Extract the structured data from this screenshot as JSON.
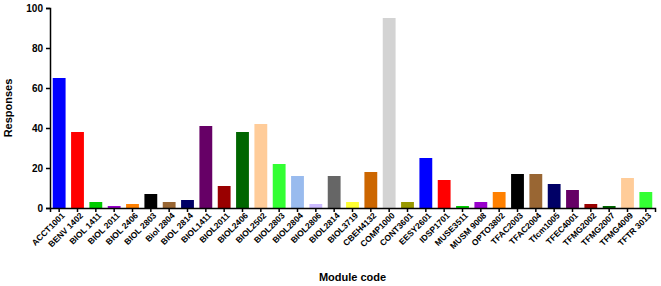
{
  "chart_data": {
    "type": "bar",
    "x_label": "Module code",
    "y_label": "Responses",
    "categories": [
      "ACCT1001",
      "BENV 1402",
      "BIOL 1411",
      "BIOL 2011",
      "BIOL 2406",
      "BIOL 2803",
      "Biol 2804",
      "BIOL 2814",
      "BIOL1411",
      "BIOL2011",
      "BIOL2406",
      "BIOL2502",
      "BIOL2803",
      "BIOL2804",
      "BIOL2806",
      "BIOL2814",
      "BIOL3719",
      "CBEH4132",
      "COMP1000",
      "CONT3601",
      "EESY2601",
      "IDSP1701",
      "MUSE3511",
      "MUSM 9008",
      "OPTO3802",
      "TFAC2003",
      "TFAC2004",
      "Tfcm1005",
      "TFEC4001",
      "TFMG2002",
      "TFMG2007",
      "TFMG4009",
      "TFTR 3013"
    ],
    "values": [
      65,
      38,
      3,
      1,
      2,
      7,
      3,
      4,
      41,
      11,
      38,
      42,
      22,
      16,
      2,
      16,
      3,
      18,
      95,
      3,
      25,
      14,
      1,
      3,
      8,
      17,
      17,
      12,
      9,
      2,
      1,
      15,
      8
    ],
    "colors": [
      "#0000ff",
      "#ff0000",
      "#00cc00",
      "#9900cc",
      "#ff8000",
      "#000000",
      "#996633",
      "#000066",
      "#660066",
      "#990000",
      "#006600",
      "#ffcc99",
      "#33ff33",
      "#99bbee",
      "#ccbbff",
      "#666666",
      "#ffff33",
      "#cc6600",
      "#d3d3d3",
      "#999900",
      "#0000ff",
      "#ff0000",
      "#00cc00",
      "#9900cc",
      "#ff8000",
      "#000000",
      "#996633",
      "#000066",
      "#660066",
      "#990000",
      "#006600",
      "#ffcc99",
      "#33ff33"
    ],
    "ylim": [
      0,
      100
    ],
    "yticks": [
      0,
      20,
      40,
      60,
      80,
      100
    ]
  }
}
